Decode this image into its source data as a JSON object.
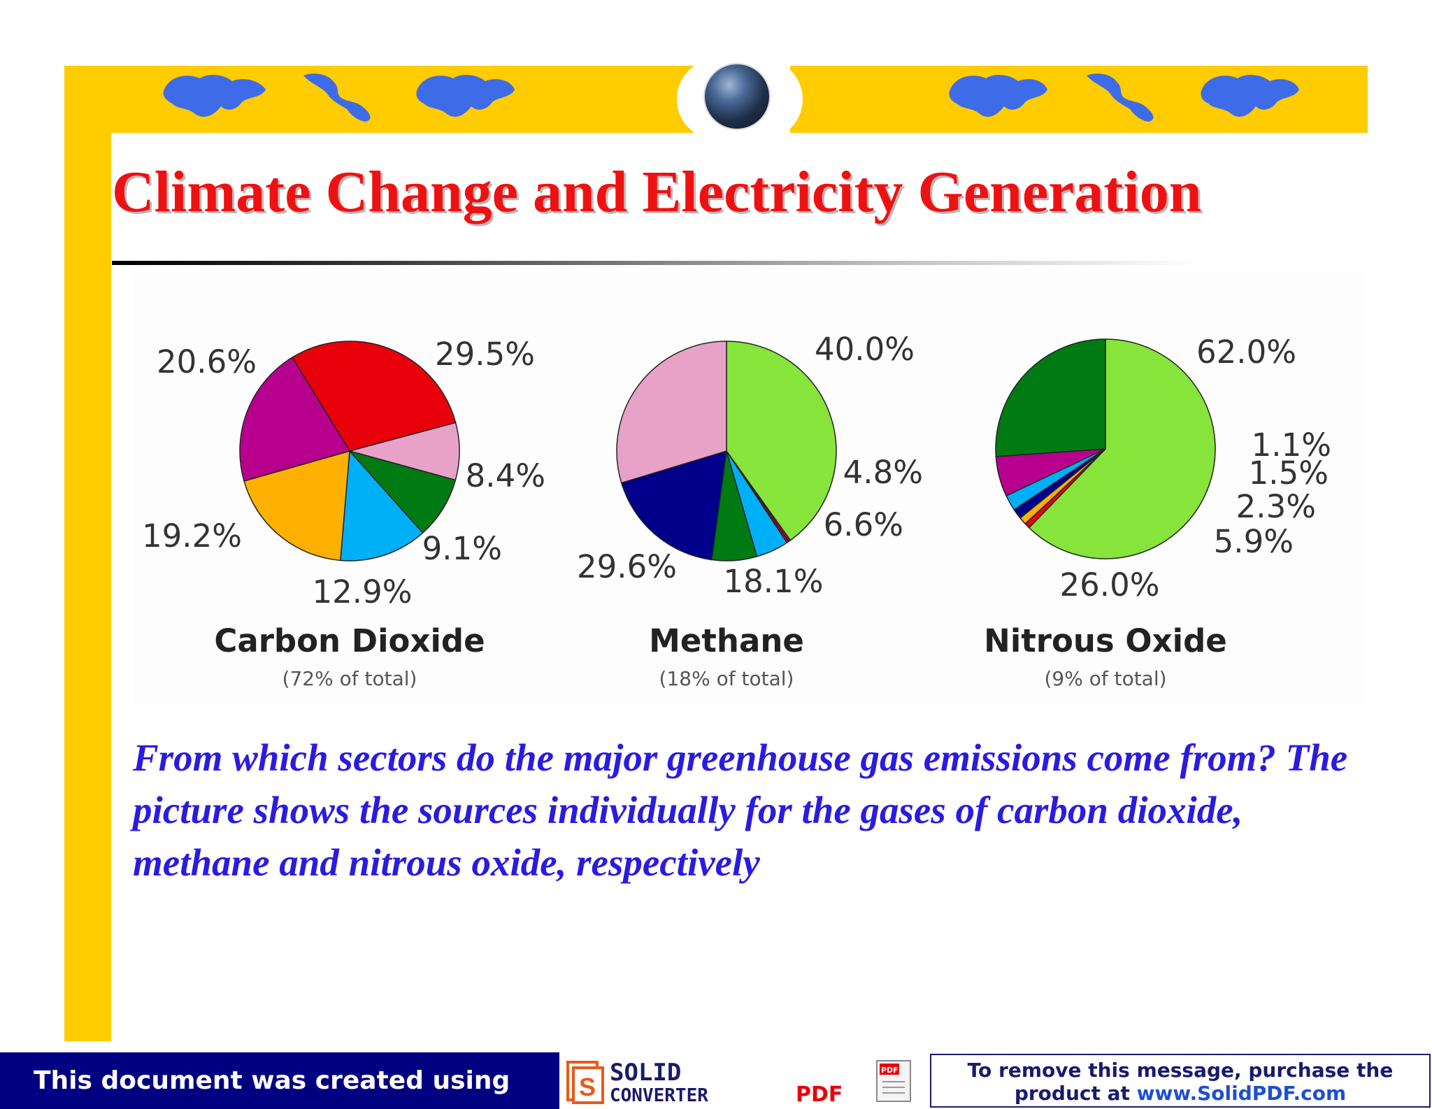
{
  "slide": {
    "title": "Climate Change and Electricity Generation",
    "caption": "From which sectors do the major greenhouse gas emissions come from? The picture shows the sources individually for the gases of carbon dioxide, methane and nitrous oxide, respectively"
  },
  "chart_data": [
    {
      "type": "pie",
      "title": "Carbon Dioxide",
      "subtitle": "(72% of total)",
      "slices": [
        {
          "label": "29.5%",
          "value": 29.5,
          "color": "#E8000B"
        },
        {
          "label": "8.4%",
          "value": 8.4,
          "color": "#E8A2C8"
        },
        {
          "label": "9.1%",
          "value": 9.1,
          "color": "#007A12"
        },
        {
          "label": "12.9%",
          "value": 12.9,
          "color": "#00B0F6"
        },
        {
          "label": "19.2%",
          "value": 19.2,
          "color": "#FFB000"
        },
        {
          "label": "20.6%",
          "value": 20.6,
          "color": "#B8008E"
        }
      ]
    },
    {
      "type": "pie",
      "title": "Methane",
      "subtitle": "(18% of total)",
      "slices": [
        {
          "label": "40.0%",
          "value": 40.0,
          "color": "#86E43A"
        },
        {
          "label": "",
          "value": 0.3,
          "color": "#B8008E"
        },
        {
          "label": "",
          "value": 0.3,
          "color": "#E8000B"
        },
        {
          "label": "4.8%",
          "value": 4.8,
          "color": "#00B0F6"
        },
        {
          "label": "6.6%",
          "value": 6.6,
          "color": "#007A12"
        },
        {
          "label": "18.1%",
          "value": 18.1,
          "color": "#00008B"
        },
        {
          "label": "29.6%",
          "value": 29.6,
          "color": "#E8A2C8"
        }
      ]
    },
    {
      "type": "pie",
      "title": "Nitrous Oxide",
      "subtitle": "(9% of total)",
      "slices": [
        {
          "label": "62.0%",
          "value": 62.0,
          "color": "#86E43A"
        },
        {
          "label": "",
          "value": 0.8,
          "color": "#E8000B"
        },
        {
          "label": "1.1%",
          "value": 1.1,
          "color": "#FFB000"
        },
        {
          "label": "1.5%",
          "value": 1.5,
          "color": "#00008B"
        },
        {
          "label": "2.3%",
          "value": 2.3,
          "color": "#00B0F6"
        },
        {
          "label": "5.9%",
          "value": 5.9,
          "color": "#B8008E"
        },
        {
          "label": "26.0%",
          "value": 26.0,
          "color": "#007A12"
        }
      ]
    }
  ],
  "footer": {
    "left_text": "This document was created using",
    "logo_solid": "SOLID",
    "logo_converter": "CONVERTER",
    "logo_pdf": "PDF",
    "right_line1": "To remove this message, purchase the",
    "right_line2_prefix": "product at ",
    "right_url": "www.SolidPDF.com"
  }
}
